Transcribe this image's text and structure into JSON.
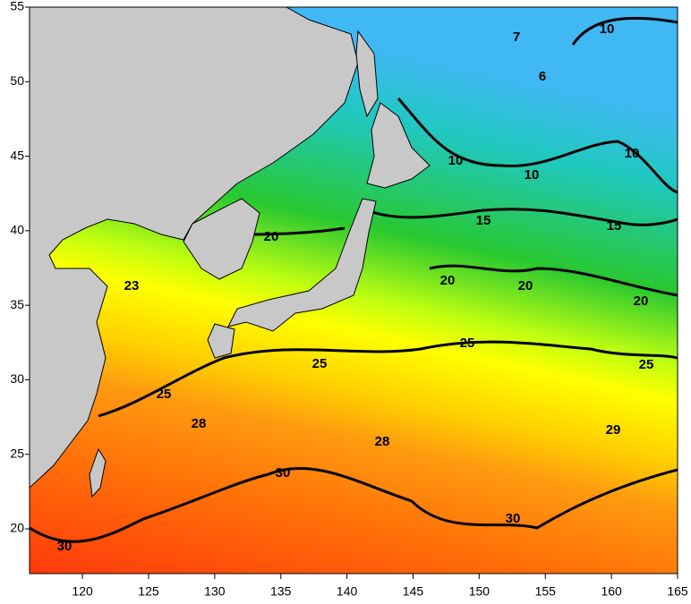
{
  "map": {
    "xlim": [
      116,
      165
    ],
    "ylim": [
      17,
      55
    ],
    "xticks": [
      120,
      125,
      130,
      135,
      140,
      145,
      150,
      155,
      160,
      165
    ],
    "yticks": [
      20,
      25,
      30,
      35,
      40,
      45,
      50,
      55
    ],
    "contour_labels": [
      7,
      10,
      6,
      10,
      10,
      10,
      15,
      15,
      20,
      20,
      20,
      20,
      23,
      25,
      25,
      25,
      25,
      28,
      28,
      29,
      30,
      30,
      30
    ]
  }
}
